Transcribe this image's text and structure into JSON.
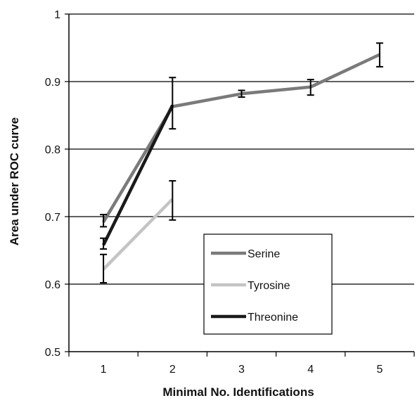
{
  "chart_data": {
    "type": "line",
    "title": "",
    "xlabel": "Minimal No. Identifications",
    "ylabel": "Area under ROC curve",
    "x_categories": [
      "1",
      "2",
      "3",
      "4",
      "5"
    ],
    "y_ticks": [
      "0.5",
      "0.6",
      "0.7",
      "0.8",
      "0.9",
      "1"
    ],
    "ylim": [
      0.5,
      1.0
    ],
    "grid": "horizontal",
    "legend_position": "center-right",
    "series": [
      {
        "name": "Serine",
        "color": "#7a7a7a",
        "points": [
          {
            "x": 1,
            "y": 0.692,
            "err_low": 0.685,
            "err_high": 0.703
          },
          {
            "x": 2,
            "y": 0.863
          },
          {
            "x": 3,
            "y": 0.882,
            "err_low": 0.877,
            "err_high": 0.887
          },
          {
            "x": 4,
            "y": 0.892,
            "err_low": 0.88,
            "err_high": 0.903
          },
          {
            "x": 5,
            "y": 0.94,
            "err_low": 0.922,
            "err_high": 0.957
          }
        ]
      },
      {
        "name": "Tyrosine",
        "color": "#c4c4c4",
        "points": [
          {
            "x": 1,
            "y": 0.622,
            "err_low": 0.602,
            "err_high": 0.644
          },
          {
            "x": 2,
            "y": 0.726,
            "err_low": 0.695,
            "err_high": 0.753
          }
        ]
      },
      {
        "name": "Threonine",
        "color": "#1a1a1a",
        "points": [
          {
            "x": 1,
            "y": 0.658,
            "err_low": 0.652,
            "err_high": 0.668
          },
          {
            "x": 2,
            "y": 0.865,
            "err_low": 0.83,
            "err_high": 0.906
          }
        ]
      }
    ]
  }
}
